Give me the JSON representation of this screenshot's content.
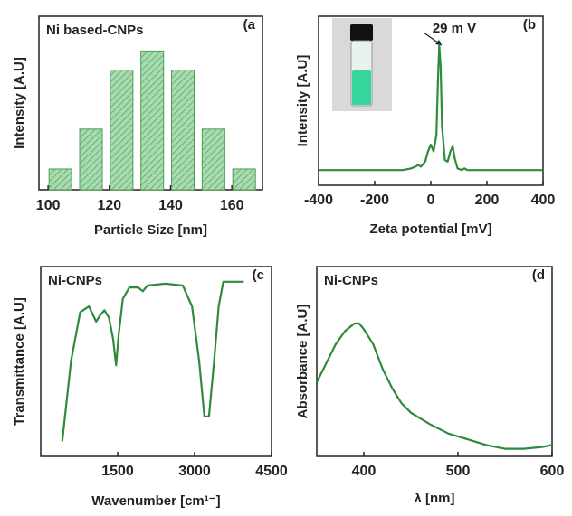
{
  "chart_data": [
    {
      "type": "bar",
      "title": "Ni based-CNPs",
      "panel_label": "(a",
      "xlabel": "Particle Size [nm]",
      "ylabel": "Intensity [A.U]",
      "x": [
        104,
        114,
        124,
        134,
        144,
        154,
        164
      ],
      "values": [
        0.12,
        0.35,
        0.69,
        0.8,
        0.69,
        0.35,
        0.12
      ],
      "color": "#a8dbb0",
      "xlim": [
        97,
        170
      ],
      "ylim": [
        0,
        1
      ],
      "xticks": [
        100,
        120,
        140,
        160
      ]
    },
    {
      "type": "line",
      "panel_label": "(b",
      "xlabel": "Zeta potential [mV]",
      "ylabel": "Intensity [A.U]",
      "annotation": "29 m V",
      "x": [
        -400,
        -100,
        -70,
        -55,
        -45,
        -35,
        -20,
        -10,
        0,
        10,
        20,
        25,
        30,
        35,
        40,
        50,
        60,
        70,
        78,
        85,
        95,
        110,
        120,
        130,
        150,
        400
      ],
      "values": [
        0.09,
        0.09,
        0.1,
        0.11,
        0.12,
        0.11,
        0.14,
        0.2,
        0.24,
        0.2,
        0.3,
        0.6,
        0.83,
        0.7,
        0.35,
        0.15,
        0.14,
        0.2,
        0.23,
        0.16,
        0.1,
        0.09,
        0.1,
        0.09,
        0.09,
        0.09
      ],
      "color": "#2e8b3a",
      "xlim": [
        -400,
        400
      ],
      "ylim": [
        0,
        1
      ],
      "xticks": [
        -400,
        -200,
        0,
        200,
        400
      ]
    },
    {
      "type": "line",
      "title": "Ni-CNPs",
      "panel_label": "(c",
      "xlabel": "Wavenumber [cm¹⁻]",
      "ylabel": "Transmittance [A.U]",
      "x": [
        420,
        590,
        770,
        940,
        1080,
        1150,
        1240,
        1330,
        1410,
        1470,
        1520,
        1600,
        1730,
        1900,
        1990,
        2080,
        2430,
        2770,
        2950,
        3090,
        3190,
        3280,
        3380,
        3470,
        3560,
        3730,
        3960
      ],
      "values": [
        0.08,
        0.5,
        0.76,
        0.79,
        0.71,
        0.74,
        0.77,
        0.73,
        0.62,
        0.48,
        0.64,
        0.83,
        0.89,
        0.89,
        0.87,
        0.9,
        0.91,
        0.9,
        0.79,
        0.5,
        0.21,
        0.21,
        0.5,
        0.79,
        0.92,
        0.92,
        0.92
      ],
      "color": "#2e8b3a",
      "xlim": [
        0,
        4500
      ],
      "ylim": [
        0,
        1
      ],
      "xticks": [
        1500,
        3000,
        4500
      ]
    },
    {
      "type": "line",
      "title": "Ni-CNPs",
      "panel_label": "(d",
      "xlabel": "λ [nm]",
      "ylabel": "Absorbance [A.U]",
      "x": [
        350,
        360,
        370,
        380,
        390,
        395,
        400,
        410,
        420,
        430,
        440,
        450,
        470,
        490,
        510,
        530,
        550,
        570,
        590,
        600
      ],
      "values": [
        0.39,
        0.49,
        0.59,
        0.66,
        0.7,
        0.7,
        0.67,
        0.59,
        0.46,
        0.36,
        0.28,
        0.23,
        0.17,
        0.12,
        0.09,
        0.06,
        0.04,
        0.04,
        0.05,
        0.06
      ],
      "color": "#2e8b3a",
      "xlim": [
        350,
        600
      ],
      "ylim": [
        0,
        1
      ],
      "xticks": [
        400,
        500,
        600
      ]
    }
  ]
}
